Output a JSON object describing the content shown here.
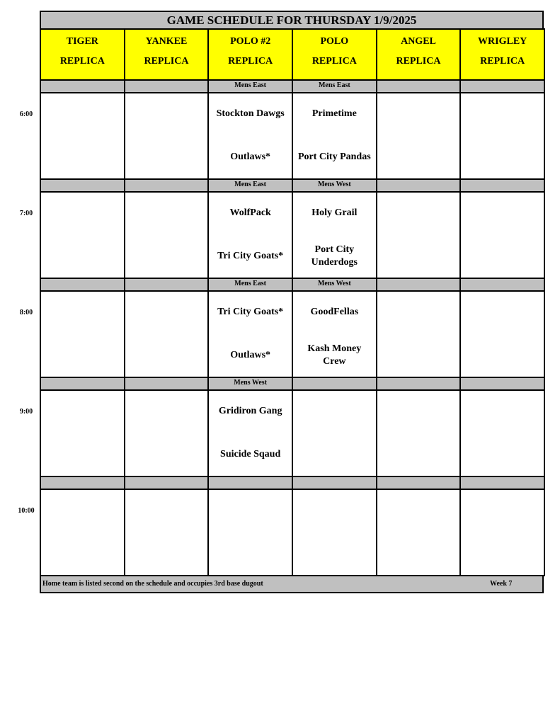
{
  "title": "GAME SCHEDULE FOR THURSDAY 1/9/2025",
  "fields": [
    {
      "line1": "TIGER",
      "line2": "REPLICA"
    },
    {
      "line1": "YANKEE",
      "line2": "REPLICA"
    },
    {
      "line1": "POLO #2",
      "line2": "REPLICA"
    },
    {
      "line1": "POLO",
      "line2": "REPLICA"
    },
    {
      "line1": "ANGEL",
      "line2": "REPLICA"
    },
    {
      "line1": "WRIGLEY",
      "line2": "REPLICA"
    }
  ],
  "slots": [
    {
      "time": "6:00",
      "divisions": [
        "",
        "",
        "Mens East",
        "Mens East",
        "",
        ""
      ],
      "games": [
        null,
        null,
        {
          "away": "Stockton Dawgs",
          "home": "Outlaws*"
        },
        {
          "away": "Primetime",
          "home": "Port City Pandas"
        },
        null,
        null
      ]
    },
    {
      "time": "7:00",
      "divisions": [
        "",
        "",
        "Mens East",
        "Mens West",
        "",
        ""
      ],
      "games": [
        null,
        null,
        {
          "away": "WolfPack",
          "home": "Tri City Goats*"
        },
        {
          "away": "Holy Grail",
          "home": "Port City Underdogs"
        },
        null,
        null
      ]
    },
    {
      "time": "8:00",
      "divisions": [
        "",
        "",
        "Mens East",
        "Mens West",
        "",
        ""
      ],
      "games": [
        null,
        null,
        {
          "away": "Tri City Goats*",
          "home": "Outlaws*"
        },
        {
          "away": "GoodFellas",
          "home": "Kash Money Crew"
        },
        null,
        null
      ]
    },
    {
      "time": "9:00",
      "divisions": [
        "",
        "",
        "Mens West",
        "",
        "",
        ""
      ],
      "games": [
        null,
        null,
        {
          "away": "Gridiron Gang",
          "home": "Suicide Sqaud"
        },
        null,
        null,
        null
      ]
    },
    {
      "time": "10:00",
      "divisions": [
        "",
        "",
        "",
        "",
        "",
        ""
      ],
      "games": [
        null,
        null,
        null,
        null,
        null,
        null
      ]
    }
  ],
  "footer": {
    "note": "Home team is listed second on the schedule and occupies 3rd base dugout",
    "week": "Week 7"
  },
  "colors": {
    "header": "#ffff00",
    "band": "#c0c0c0"
  }
}
